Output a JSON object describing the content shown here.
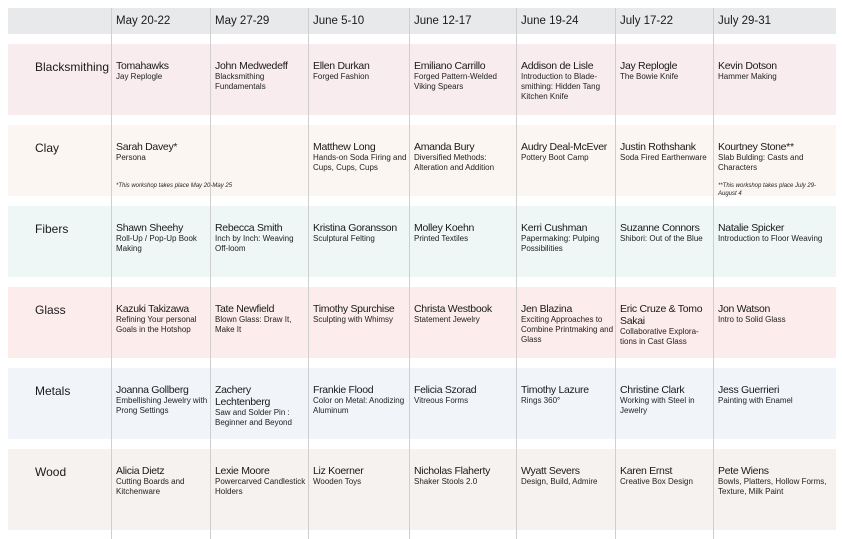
{
  "columns": [
    "May 20-22",
    "May 27-29",
    "June 5-10",
    "June 12-17",
    "June 19-24",
    "July 17-22",
    "July 29-31"
  ],
  "rows": [
    {
      "category": "Blacksmithing",
      "color": "#f8ecee",
      "cells": [
        {
          "name": "Tomahawks",
          "title": "Jay Replogle"
        },
        {
          "name": "John Medwedeff",
          "title": "Blacksmithing Fundamentals"
        },
        {
          "name": "Ellen Durkan",
          "title": "Forged Fashion"
        },
        {
          "name": "Emiliano Carrillo",
          "title": "Forged Pattern-Welded Viking Spears"
        },
        {
          "name": "Addison de Lisle",
          "title": "Introduction to Blade-smithing: Hidden Tang Kitchen Knife"
        },
        {
          "name": "Jay Replogle",
          "title": "The Bowie Knife"
        },
        {
          "name": "Kevin Dotson",
          "title": "Hammer Making"
        }
      ]
    },
    {
      "category": "Clay",
      "color": "#fcf6f2",
      "cells": [
        {
          "name": "Sarah Davey*",
          "title": "Persona",
          "note": "*This workshop takes place May 20-May 25"
        },
        {
          "name": "",
          "title": ""
        },
        {
          "name": "Matthew Long",
          "title": "Hands-on Soda Firing and Cups, Cups, Cups"
        },
        {
          "name": "Amanda Bury",
          "title": "Diversified Methods: Alteration and Addition"
        },
        {
          "name": "Audry Deal-McEver",
          "title": "Pottery Boot Camp"
        },
        {
          "name": "Justin Rothshank",
          "title": "Soda Fired Earthenware"
        },
        {
          "name": "Kourtney Stone**",
          "title": "Slab Bulding: Casts and Characters",
          "note": "**This workshop takes place July 29-August 4"
        }
      ]
    },
    {
      "category": "Fibers",
      "color": "#eef7f5",
      "cells": [
        {
          "name": "Shawn Sheehy",
          "title": "Roll-Up / Pop-Up Book Making"
        },
        {
          "name": "Rebecca Smith",
          "title": "Inch by Inch: Weaving Off-loom"
        },
        {
          "name": "Kristina Goransson",
          "title": "Sculptural Felting"
        },
        {
          "name": "Molley Koehn",
          "title": "Printed Textiles"
        },
        {
          "name": "Kerri Cushman",
          "title": "Papermaking: Pulping Possibilities"
        },
        {
          "name": "Suzanne Connors",
          "title": "Shibori: Out of the Blue"
        },
        {
          "name": "Natalie Spicker",
          "title": "Introduction to Floor Weaving"
        }
      ]
    },
    {
      "category": "Glass",
      "color": "#fcecec",
      "cells": [
        {
          "name": "Kazuki Takizawa",
          "title": "Refining Your personal Goals in the Hotshop"
        },
        {
          "name": "Tate Newfield",
          "title": "Blown Glass: Draw It, Make It"
        },
        {
          "name": "Timothy Spurchise",
          "title": "Sculpting with Whimsy"
        },
        {
          "name": "Christa Westbook",
          "title": "Statement Jewelry"
        },
        {
          "name": "Jen Blazina",
          "title": "Exciting Approaches to Combine Printmaking and Glass"
        },
        {
          "name": "Eric Cruze & Tomo Sakai",
          "title": "Collaborative Explora-tions in Cast Glass"
        },
        {
          "name": "Jon Watson",
          "title": "Intro to Solid Glass"
        }
      ]
    },
    {
      "category": "Metals",
      "color": "#f1f5f9",
      "cells": [
        {
          "name": "Joanna Gollberg",
          "title": "Embellishing Jewelry with Prong Settings"
        },
        {
          "name": "Zachery Lechtenberg",
          "title": "Saw and Solder Pin : Beginner and Beyond"
        },
        {
          "name": "Frankie Flood",
          "title": "Color on Metal: Anodizing Aluminum"
        },
        {
          "name": "Felicia Szorad",
          "title": "Vitreous Forms"
        },
        {
          "name": "Timothy Lazure",
          "title": "Rings 360°"
        },
        {
          "name": "Christine Clark",
          "title": "Working with Steel in Jewelry"
        },
        {
          "name": "Jess Guerrieri",
          "title": "Painting with Enamel"
        }
      ]
    },
    {
      "category": "Wood",
      "color": "#f6f2ef",
      "cells": [
        {
          "name": "Alicia Dietz",
          "title": "Cutting Boards and Kitchenware"
        },
        {
          "name": "Lexie Moore",
          "title": "Powercarved Candlestick Holders"
        },
        {
          "name": "Liz Koerner",
          "title": "Wooden Toys"
        },
        {
          "name": "Nicholas Flaherty",
          "title": "Shaker Stools 2.0"
        },
        {
          "name": "Wyatt Severs",
          "title": "Design, Build, Admire"
        },
        {
          "name": "Karen Ernst",
          "title": "Creative Box Design"
        },
        {
          "name": "Pete Wiens",
          "title": "Bowls, Platters, Hollow Forms, Texture, Milk Paint"
        }
      ]
    }
  ]
}
